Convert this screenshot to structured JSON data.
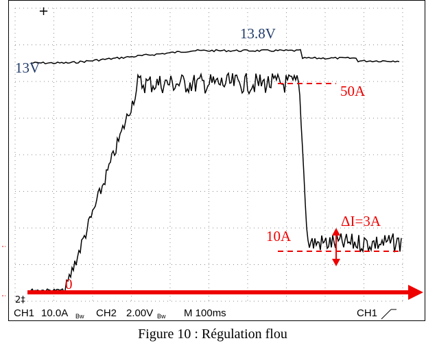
{
  "annotations": {
    "v_high": "13.8V",
    "v_low": "13V",
    "i_high": "50A",
    "i_low": "10A",
    "delta": "ΔI=3A",
    "zero": "0"
  },
  "status_bar": [
    "CH1",
    "10.0A",
    "Bw",
    "CH2",
    "2.00V",
    "Bw",
    "M 100ms",
    "CH1"
  ],
  "caption": "Figure 10 : Régulation flou"
}
